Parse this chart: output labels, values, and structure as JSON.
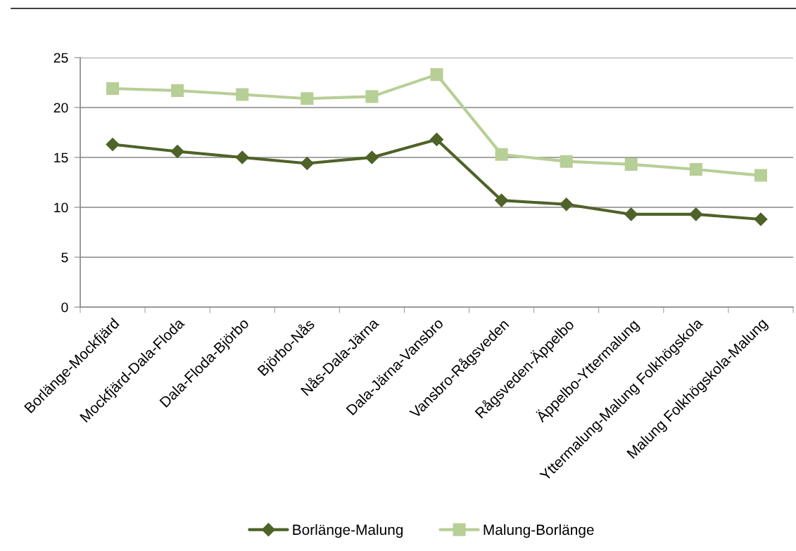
{
  "chart_data": {
    "type": "line",
    "categories": [
      "Borlänge-Mockfjärd",
      "Mockfjärd-Dala-Floda",
      "Dala-Floda-Björbo",
      "Björbo-Nås",
      "Nås-Dala-Järna",
      "Dala-Järna-Vansbro",
      "Vansbro-Rågsveden",
      "Rågsveden-Äppelbo",
      "Äppelbo-Yttermalung",
      "Yttermalung-Malung Folkhögskola",
      "Malung Folkhögskola-Malung"
    ],
    "series": [
      {
        "name": "Borlänge-Malung",
        "color": "#4f6228",
        "marker": "diamond",
        "values": [
          16.3,
          15.6,
          15.0,
          14.4,
          15.0,
          16.8,
          10.7,
          10.3,
          9.3,
          9.3,
          8.8
        ]
      },
      {
        "name": "Malung-Borlänge",
        "color": "#b7cf96",
        "marker": "square",
        "values": [
          21.9,
          21.7,
          21.3,
          20.9,
          21.1,
          23.3,
          15.3,
          14.6,
          14.3,
          13.8,
          13.2
        ]
      }
    ],
    "ylim": [
      0,
      25
    ],
    "yticks": [
      0,
      5,
      10,
      15,
      20,
      25
    ],
    "grid": "y",
    "legend": "bottom",
    "line_style": "solid"
  }
}
